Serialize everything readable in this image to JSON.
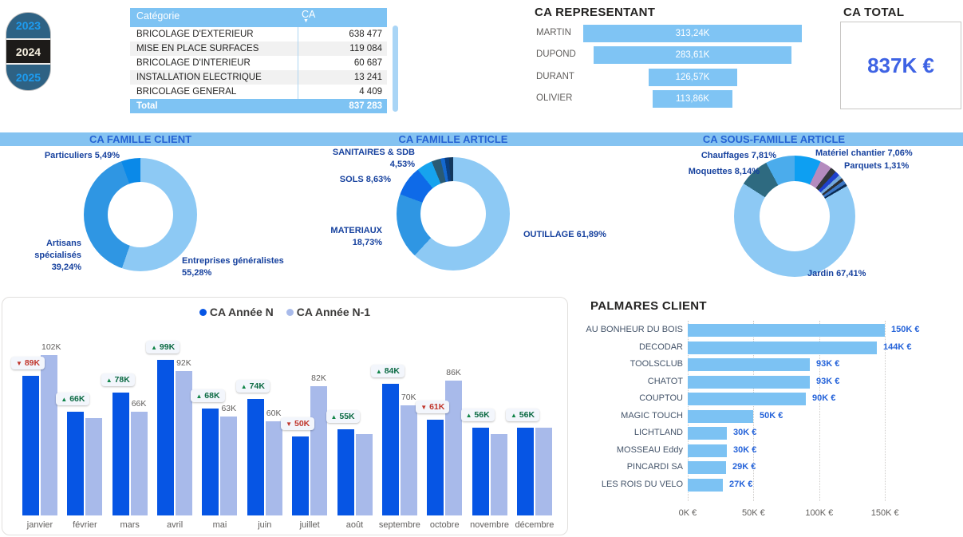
{
  "ui": {
    "slicer": {
      "years": [
        "2023",
        "2024",
        "2025"
      ],
      "selected": "2024"
    },
    "total_card": {
      "title": "CA TOTAL",
      "value": "837K €"
    }
  },
  "chart_data": [
    {
      "type": "table",
      "columns": [
        "Catégorie",
        "CA"
      ],
      "sort_icon": "▼",
      "rows": [
        [
          "BRICOLAGE D'EXTERIEUR",
          "638 477"
        ],
        [
          "MISE EN PLACE SURFACES",
          "119 084"
        ],
        [
          "BRICOLAGE D'INTERIEUR",
          "60 687"
        ],
        [
          "INSTALLATION ELECTRIQUE",
          "13 241"
        ],
        [
          "BRICOLAGE GENERAL",
          "4 409"
        ]
      ],
      "total_label": "Total",
      "total_value": "837 283"
    },
    {
      "type": "funnel",
      "title": "CA REPRESENTANT",
      "items": [
        {
          "name": "MARTIN",
          "value": 313.24,
          "label": "313,24K"
        },
        {
          "name": "DUPOND",
          "value": 283.61,
          "label": "283,61K"
        },
        {
          "name": "DURANT",
          "value": 126.57,
          "label": "126,57K"
        },
        {
          "name": "OLIVIER",
          "value": 113.86,
          "label": "113,86K"
        }
      ]
    },
    {
      "type": "pie",
      "title": "CA FAMILLE CLIENT",
      "slices": [
        {
          "name": "Entreprises généralistes",
          "pct": 55.28,
          "color": "#8DC9F4",
          "display": "Entreprises généralistes\n55,28%"
        },
        {
          "name": "Artisans spécialisés",
          "pct": 39.24,
          "color": "#2F96E3",
          "display": "Artisans spécialisés\n39,24%"
        },
        {
          "name": "Particuliers",
          "pct": 5.49,
          "color": "#0A89E8",
          "display": "Particuliers 5,49%"
        }
      ]
    },
    {
      "type": "pie",
      "title": "CA FAMILLE ARTICLE",
      "slices": [
        {
          "name": "OUTILLAGE",
          "pct": 61.89,
          "color": "#8DC9F4",
          "display": "OUTILLAGE 61,89%"
        },
        {
          "name": "MATERIAUX",
          "pct": 18.73,
          "color": "#2F96E3",
          "display": "MATERIAUX 18,73%"
        },
        {
          "name": "SOLS",
          "pct": 8.63,
          "color": "#0E6AE8",
          "display": "SOLS 8,63%"
        },
        {
          "name": "SANITAIRES & SDB",
          "pct": 4.53,
          "color": "#16A3EE",
          "display": "SANITAIRES & SDB\n4,53%"
        },
        {
          "name": "autre-1",
          "pct": 2.6,
          "color": "#2A5A74",
          "display": ""
        },
        {
          "name": "autre-2",
          "pct": 1.2,
          "color": "#1468D0",
          "display": ""
        },
        {
          "name": "autre-3",
          "pct": 1.2,
          "color": "#0A3E80",
          "display": ""
        },
        {
          "name": "autre-4",
          "pct": 1.22,
          "color": "#12375C",
          "display": ""
        }
      ]
    },
    {
      "type": "pie",
      "title": "CA SOUS-FAMILLE ARTICLE",
      "slices": [
        {
          "name": "Matériel chantier",
          "pct": 7.06,
          "color": "#0D9FF2",
          "display": "Matériel chantier 7,06%"
        },
        {
          "name": "autre-1",
          "pct": 3.2,
          "color": "#B48BBE",
          "display": ""
        },
        {
          "name": "autre-2",
          "pct": 1.6,
          "color": "#33373C",
          "display": ""
        },
        {
          "name": "Parquets",
          "pct": 1.31,
          "color": "#1E41CC",
          "display": "Parquets 1,31%"
        },
        {
          "name": "autre-3",
          "pct": 1.0,
          "color": "#74A9DC",
          "display": ""
        },
        {
          "name": "autre-4",
          "pct": 0.8,
          "color": "#2B2E33",
          "display": ""
        },
        {
          "name": "autre-5",
          "pct": 1.0,
          "color": "#3B76C4",
          "display": ""
        },
        {
          "name": "autre-6",
          "pct": 0.67,
          "color": "#0C2C52",
          "display": ""
        },
        {
          "name": "Jardin",
          "pct": 67.41,
          "color": "#8DC9F4",
          "display": "Jardin 67,41%"
        },
        {
          "name": "Moquettes",
          "pct": 8.14,
          "color": "#2E6A80",
          "display": "Moquettes 8,14%"
        },
        {
          "name": "Chauffages",
          "pct": 7.81,
          "color": "#4BACEC",
          "display": "Chauffages 7,81%"
        }
      ]
    },
    {
      "type": "bar",
      "categories": [
        "janvier",
        "février",
        "mars",
        "avril",
        "mai",
        "juin",
        "juillet",
        "août",
        "septembre",
        "octobre",
        "novembre",
        "décembre"
      ],
      "series": [
        {
          "name": "CA Année N",
          "color": "#0655E4",
          "values": [
            89,
            66,
            78,
            99,
            68,
            74,
            50,
            55,
            84,
            61,
            56,
            56
          ]
        },
        {
          "name": "CA Année N-1",
          "color": "#A8BAEA",
          "values": [
            102,
            62,
            66,
            92,
            63,
            60,
            82,
            52,
            70,
            86,
            52,
            56
          ]
        }
      ],
      "n_trend": [
        "down",
        "up",
        "up",
        "up",
        "up",
        "up",
        "down",
        "up",
        "up",
        "down",
        "up",
        "up"
      ],
      "n_labels": [
        "89K",
        "66K",
        "78K",
        "99K",
        "68K",
        "74K",
        "50K",
        "55K",
        "84K",
        "61K",
        "56K",
        "56K"
      ],
      "n1_labels": [
        "102K",
        "",
        "66K",
        "92K",
        "63K",
        "60K",
        "82K",
        "",
        "70K",
        "86K",
        "",
        ""
      ],
      "ylim": [
        0,
        110
      ]
    },
    {
      "type": "bar",
      "title": "PALMARES CLIENT",
      "orientation": "horizontal",
      "categories": [
        "AU BONHEUR DU BOIS",
        "DECODAR",
        "TOOLSCLUB",
        "CHATOT",
        "COUPTOU",
        "MAGIC TOUCH",
        "LICHTLAND",
        "MOSSEAU Eddy",
        "PINCARDI SA",
        "LES ROIS DU VELO"
      ],
      "values": [
        150,
        144,
        93,
        93,
        90,
        50,
        30,
        30,
        29,
        27
      ],
      "value_labels": [
        "150K €",
        "144K €",
        "93K €",
        "93K €",
        "90K €",
        "50K €",
        "30K €",
        "30K €",
        "29K €",
        "27K €"
      ],
      "x_ticks": [
        "0K €",
        "50K €",
        "100K €",
        "150K €"
      ],
      "xlim": [
        0,
        150
      ]
    }
  ]
}
